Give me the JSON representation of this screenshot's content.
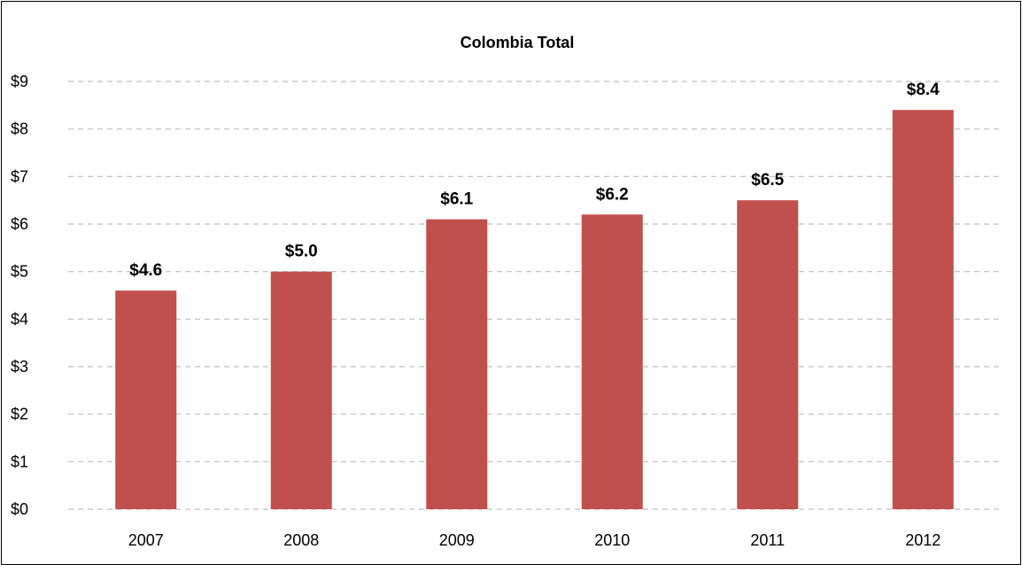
{
  "chart_data": {
    "type": "bar",
    "title": "Colombia Total",
    "categories": [
      "2007",
      "2008",
      "2009",
      "2010",
      "2011",
      "2012"
    ],
    "values": [
      4.6,
      5.0,
      6.1,
      6.2,
      6.5,
      8.4
    ],
    "data_labels": [
      "$4.6",
      "$5.0",
      "$6.1",
      "$6.2",
      "$6.5",
      "$8.4"
    ],
    "y_ticks": [
      "$0",
      "$1",
      "$2",
      "$3",
      "$4",
      "$5",
      "$6",
      "$7",
      "$8",
      "$9"
    ],
    "ylim": [
      0,
      9
    ],
    "xlabel": "",
    "ylabel": "",
    "grid": true,
    "gridline_style": "dashed",
    "legend": "none",
    "bar_color": "#c0504d"
  }
}
